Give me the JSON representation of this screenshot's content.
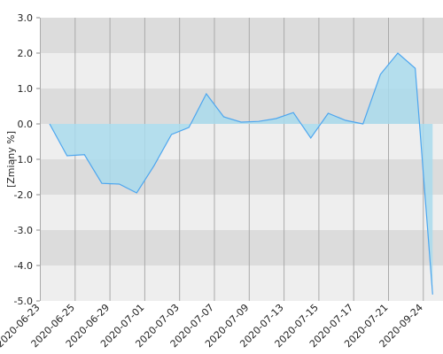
{
  "chart_data": {
    "type": "area",
    "y_label": "[Zmiany %]",
    "categories": [
      "2020-06-23",
      null,
      "2020-06-25",
      null,
      "2020-06-29",
      null,
      "2020-07-01",
      null,
      "2020-07-03",
      null,
      "2020-07-07",
      null,
      "2020-07-09",
      null,
      "2020-07-13",
      null,
      "2020-07-15",
      null,
      "2020-07-17",
      null,
      "2020-07-21",
      null,
      "2020-09-24"
    ],
    "values": [
      0,
      -0.9,
      -0.87,
      -1.68,
      -1.7,
      -1.95,
      -1.18,
      -0.3,
      -0.1,
      0.85,
      0.2,
      0.05,
      0.07,
      0.15,
      0.32,
      -0.4,
      0.3,
      0.1,
      0,
      1.4,
      2.0,
      1.57,
      -4.82
    ],
    "color": "#4da6ef",
    "fill": "#a9daec",
    "ylim": [
      -5,
      3
    ],
    "yticks": [
      {
        "value": -5,
        "label": "-5.0"
      },
      {
        "value": -4,
        "label": "-4.0"
      },
      {
        "value": -3,
        "label": "-3.0"
      },
      {
        "value": -2,
        "label": "-2.0"
      },
      {
        "value": -1,
        "label": "-1.0"
      },
      {
        "value": 0,
        "label": "0.0"
      },
      {
        "value": 1,
        "label": "1.0"
      },
      {
        "value": 2,
        "label": "2.0"
      },
      {
        "value": 3,
        "label": "3.0"
      }
    ],
    "grid": true
  }
}
